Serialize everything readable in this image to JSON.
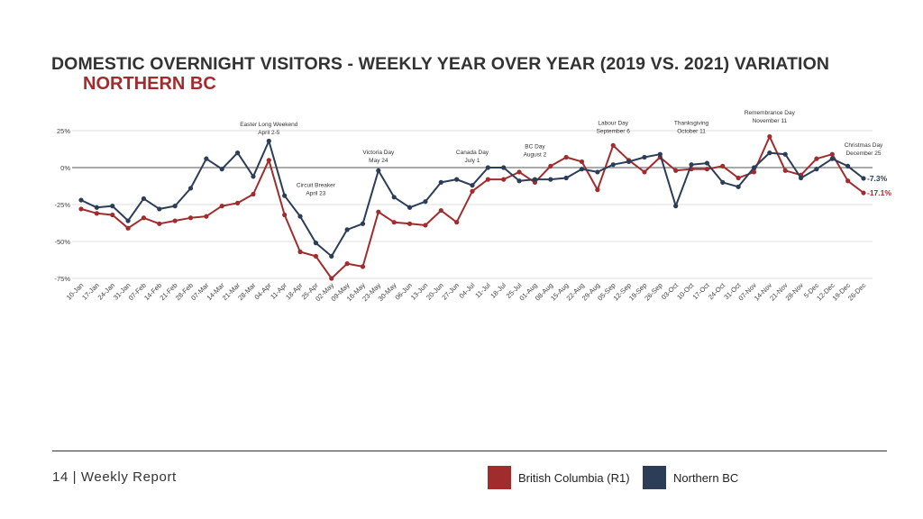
{
  "title": "DOMESTIC OVERNIGHT VISITORS - WEEKLY YEAR OVER YEAR (2019 VS. 2021) VARIATION",
  "subtitle": "NORTHERN BC",
  "footer": {
    "page_label": "14 | Weekly Report"
  },
  "colors": {
    "bc": "#a02c2e",
    "nbc": "#2c3d58",
    "accent": "#a02c2e"
  },
  "legend": [
    {
      "name": "British Columbia (R1)",
      "color": "#a02c2e"
    },
    {
      "name": "Northern BC",
      "color": "#2c3d58"
    }
  ],
  "chart_data": {
    "type": "line",
    "ylim": [
      -75,
      25
    ],
    "yticks": [
      25,
      0,
      -25,
      -50,
      -75
    ],
    "ytick_labels": [
      "25%",
      "0%",
      "-25%",
      "-50%",
      "-75%"
    ],
    "grid": true,
    "categories": [
      "10-Jan",
      "17-Jan",
      "24-Jan",
      "31-Jan",
      "07-Feb",
      "14-Feb",
      "21-Feb",
      "28-Feb",
      "07-Mar",
      "14-Mar",
      "21-Mar",
      "28-Mar",
      "04-Apr",
      "11-Apr",
      "18-Apr",
      "25-Apr",
      "02-May",
      "09-May",
      "16-May",
      "23-May",
      "30-May",
      "06-Jun",
      "13-Jun",
      "20-Jun",
      "27-Jun",
      "04-Jul",
      "11-Jul",
      "18-Jul",
      "25-Jul",
      "01-Aug",
      "08-Aug",
      "15-Aug",
      "22-Aug",
      "29-Aug",
      "05-Sep",
      "12-Sep",
      "19-Sep",
      "26-Sep",
      "03-Oct",
      "10-Oct",
      "17-Oct",
      "24-Oct",
      "31-Oct",
      "07-Nov",
      "14-Nov",
      "21-Nov",
      "28-Nov",
      "5-Dec",
      "12-Dec",
      "19-Dec",
      "26-Dec"
    ],
    "series": [
      {
        "name": "British Columbia (R1)",
        "color": "#a02c2e",
        "values": [
          -28,
          -31,
          -32,
          -41,
          -34,
          -38,
          -36,
          -34,
          -33,
          -26,
          -24,
          -18,
          5,
          -32,
          -57,
          -60,
          -75,
          -65,
          -67,
          -30,
          -37,
          -38,
          -39,
          -29,
          -37,
          -16,
          -8,
          -8,
          -3,
          -10,
          1,
          7,
          4,
          -15,
          15,
          5,
          -3,
          7,
          -2,
          -1,
          -1,
          1,
          -7,
          -3,
          21,
          -2,
          -5,
          6,
          9,
          -9,
          -17.1
        ],
        "end_label": "-17.1%"
      },
      {
        "name": "Northern BC",
        "color": "#2c3d58",
        "values": [
          -22,
          -27,
          -26,
          -36,
          -21,
          -28,
          -26,
          -14,
          6,
          -1,
          10,
          -6,
          18,
          -19,
          -33,
          -51,
          -60,
          -42,
          -38,
          -2,
          -20,
          -27,
          -23,
          -10,
          -8,
          -12,
          0,
          0,
          -9,
          -8,
          -8,
          -7,
          -1,
          -3,
          2,
          4,
          7,
          9,
          -26,
          2,
          3,
          -10,
          -13,
          0,
          10,
          9,
          -7,
          -1,
          6,
          1,
          -7.3
        ],
        "end_label": "-7.3%"
      }
    ],
    "annotations": [
      {
        "category": "04-Apr",
        "lines": [
          "Easter Long Weekend",
          "April 2-5"
        ],
        "value": 28
      },
      {
        "category": "25-Apr",
        "lines": [
          "Circuit Breaker",
          "April 23"
        ],
        "value": -13
      },
      {
        "category": "23-May",
        "lines": [
          "Victoria Day",
          "May 24"
        ],
        "value": 9
      },
      {
        "category": "04-Jul",
        "lines": [
          "Canada Day",
          "July 1"
        ],
        "value": 9
      },
      {
        "category": "01-Aug",
        "lines": [
          "BC Day",
          "August 2"
        ],
        "value": 13
      },
      {
        "category": "05-Sep",
        "lines": [
          "Labour Day",
          "September 6"
        ],
        "value": 29
      },
      {
        "category": "10-Oct",
        "lines": [
          "Thanksgiving",
          "October 11"
        ],
        "value": 29
      },
      {
        "category": "14-Nov",
        "lines": [
          "Remembrance Day",
          "November 11"
        ],
        "value": 36
      },
      {
        "category": "26-Dec",
        "lines": [
          "Christmas Day",
          "December 25"
        ],
        "value": 14
      }
    ]
  }
}
